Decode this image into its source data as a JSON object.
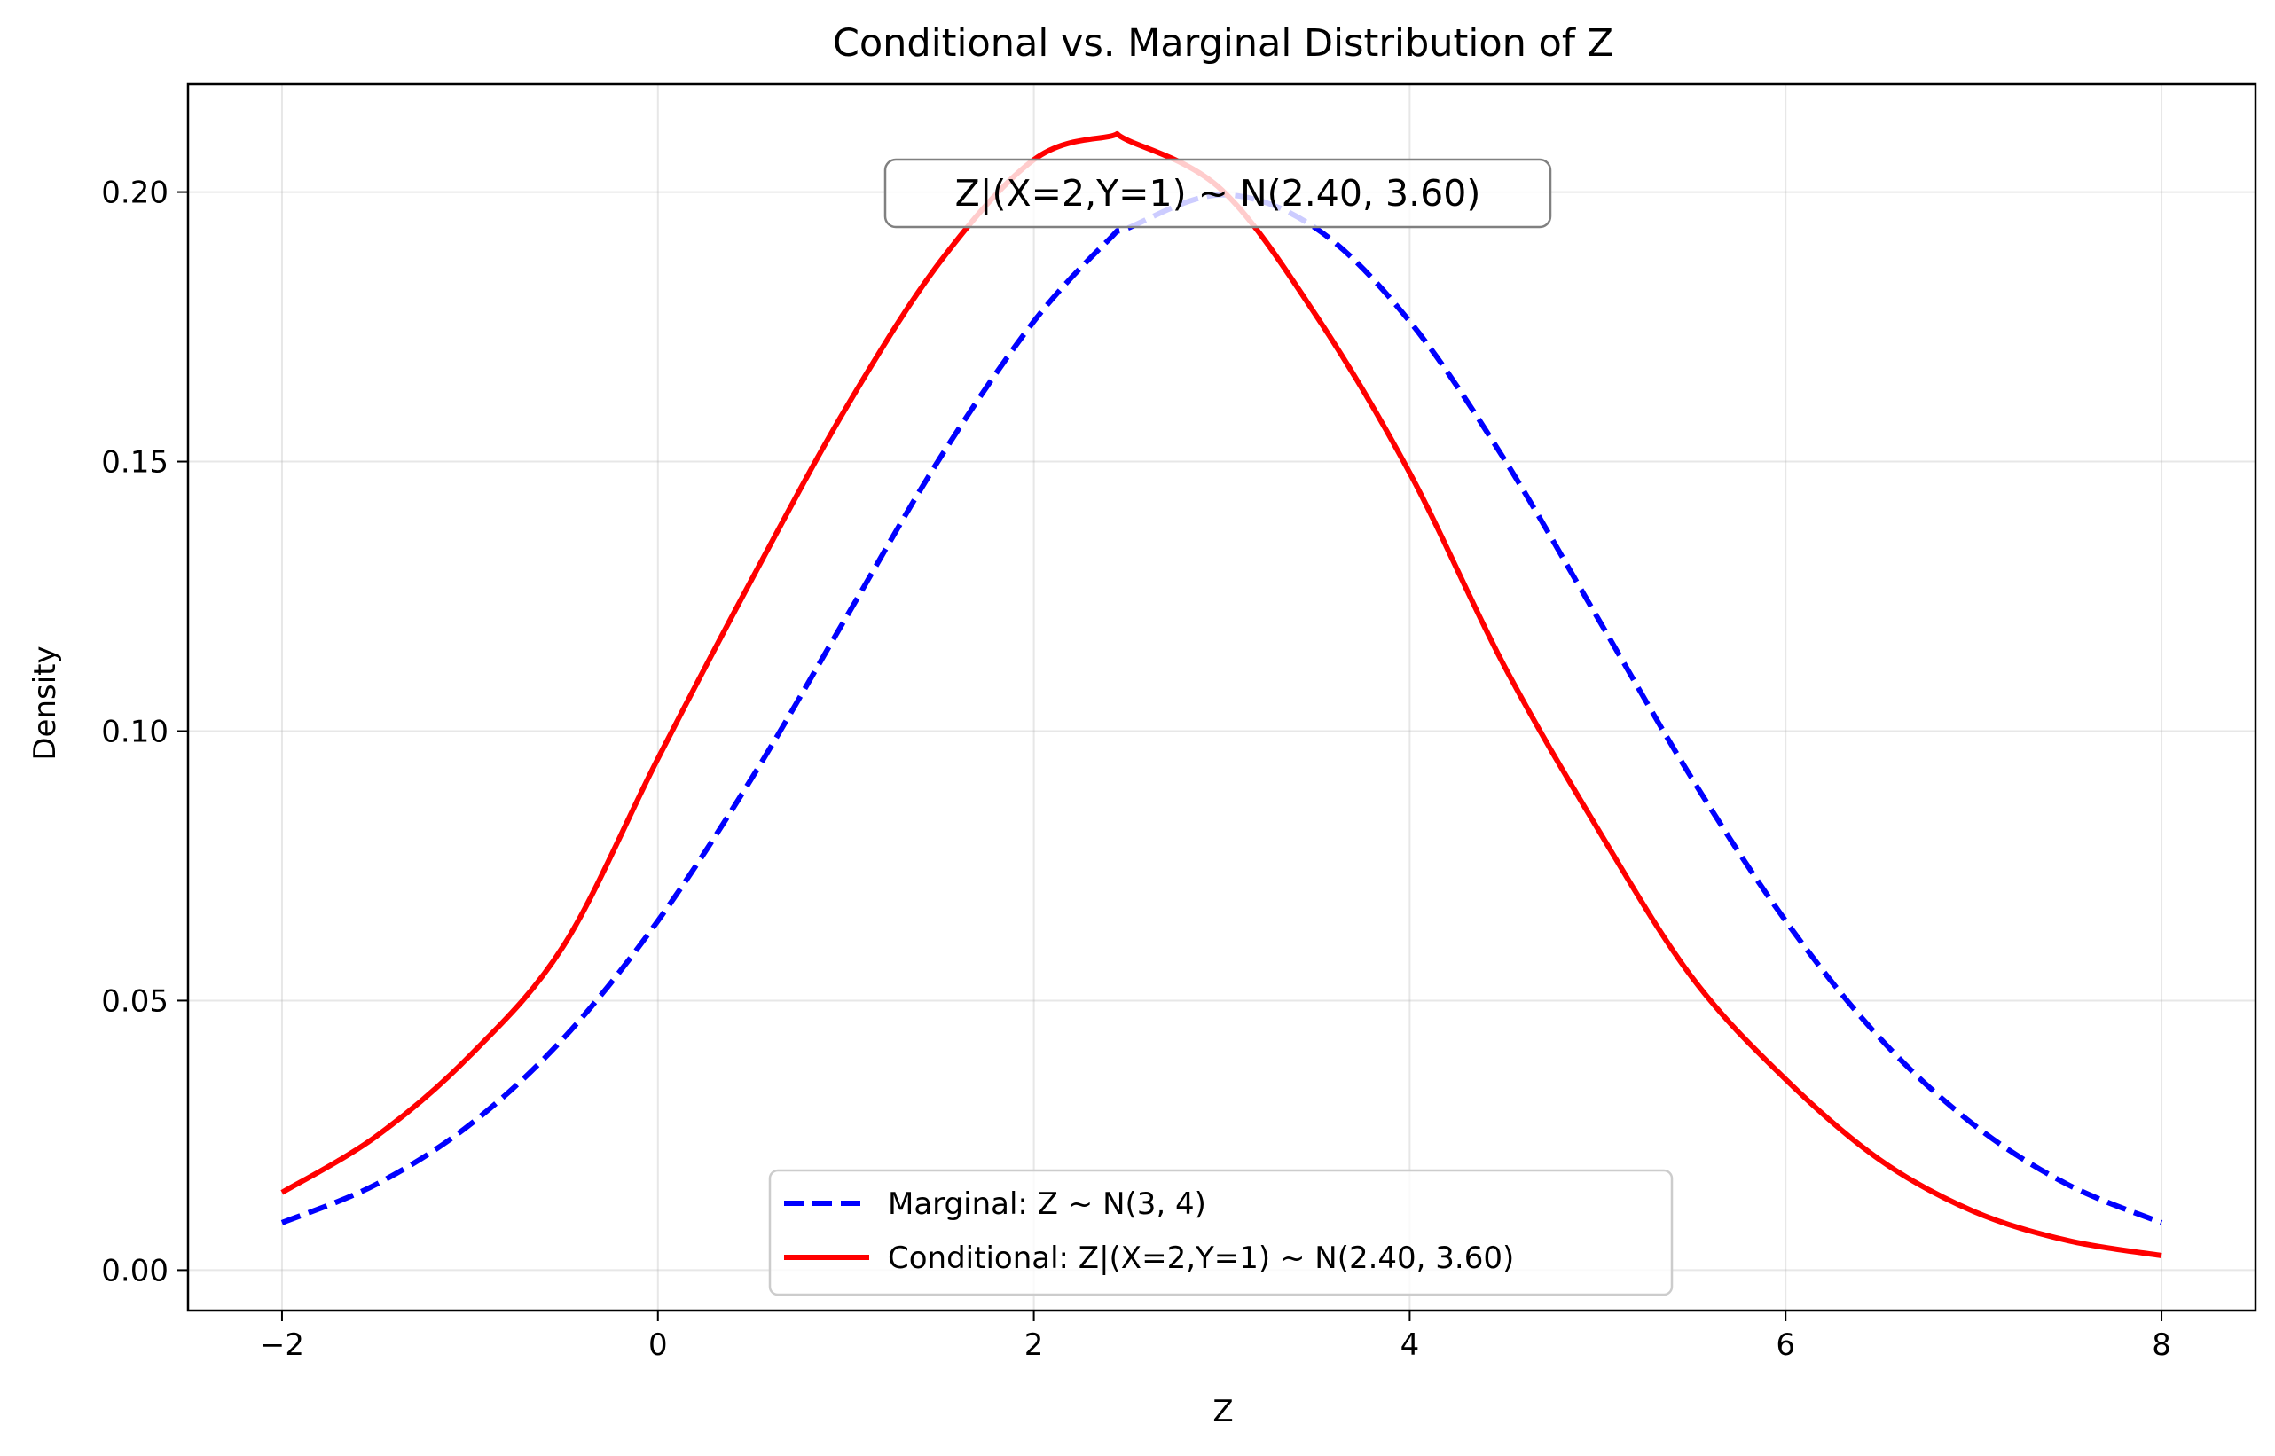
{
  "chart_data": {
    "type": "line",
    "title": "Conditional vs. Marginal Distribution of Z",
    "xlabel": "Z",
    "ylabel": "Density",
    "xlim": [
      -2.5,
      8.5
    ],
    "ylim": [
      -0.0075,
      0.22
    ],
    "xticks": [
      -2,
      0,
      2,
      4,
      6,
      8
    ],
    "xtick_labels": [
      "−2",
      "0",
      "2",
      "4",
      "6",
      "8"
    ],
    "yticks": [
      0.0,
      0.05,
      0.1,
      0.15,
      0.2
    ],
    "ytick_labels": [
      "0.00",
      "0.05",
      "0.10",
      "0.15",
      "0.20"
    ],
    "grid": true,
    "legend_position": "lower center",
    "annotation": "Z|(X=2,Y=1) ~ N(2.40, 3.60)",
    "x": [
      -2,
      -1.5,
      -1,
      -0.5,
      0,
      0.5,
      1,
      1.5,
      2,
      2.4,
      2.5,
      3,
      3.5,
      4,
      4.5,
      5,
      5.5,
      6,
      6.5,
      7,
      7.5,
      8
    ],
    "series": [
      {
        "name": "Marginal: Z ~ N(3, 4)",
        "color": "#0000ff",
        "style": "dashed",
        "values": [
          0.0088,
          0.0159,
          0.027,
          0.0431,
          0.0648,
          0.0913,
          0.121,
          0.1506,
          0.176,
          0.1912,
          0.1933,
          0.1995,
          0.1933,
          0.176,
          0.1506,
          0.121,
          0.0913,
          0.0648,
          0.0431,
          0.027,
          0.0159,
          0.0088
        ]
      },
      {
        "name": "Conditional: Z|(X=2,Y=1) ~ N(2.40, 3.60)",
        "color": "#ff0000",
        "style": "solid",
        "values": [
          0.0144,
          0.0248,
          0.0398,
          0.0603,
          0.0949,
          0.1282,
          0.1599,
          0.187,
          0.206,
          0.2103,
          0.2096,
          0.2004,
          0.1772,
          0.1479,
          0.1123,
          0.0819,
          0.0544,
          0.0354,
          0.0205,
          0.0109,
          0.0055,
          0.0027
        ]
      }
    ]
  }
}
